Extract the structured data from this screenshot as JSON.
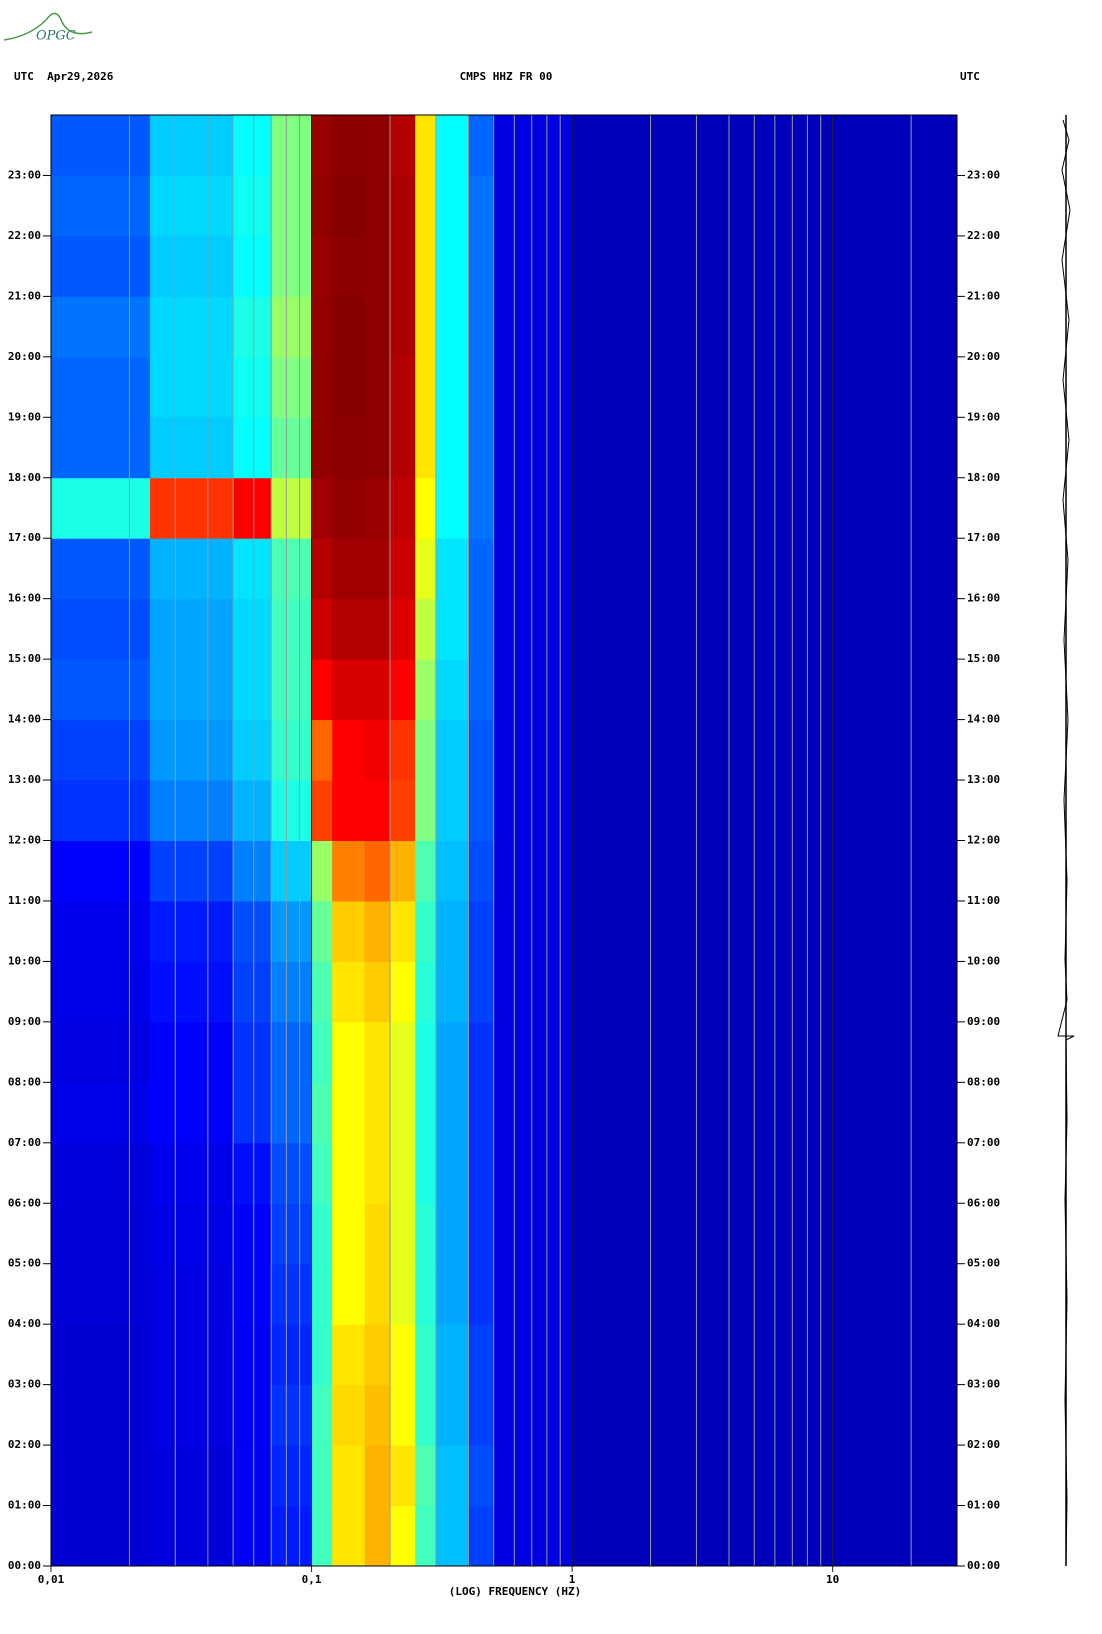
{
  "logo": "OPGC",
  "chart_data": {
    "type": "spectrogram",
    "title": "CMPS HHZ FR 00",
    "left_label": "UTC  Apr29,2026",
    "right_label": "UTC",
    "xlabel": "(LOG) FREQUENCY (HZ)",
    "xscale": "log",
    "xlim": [
      0.01,
      30
    ],
    "xticks": [
      {
        "value": 0.01,
        "label": "0,01"
      },
      {
        "value": 0.1,
        "label": "0,1"
      },
      1,
      10
    ],
    "xgrid": [
      0.02,
      0.03,
      0.04,
      0.05,
      0.06,
      0.07,
      0.08,
      0.09,
      0.2,
      0.3,
      0.4,
      0.5,
      0.6,
      0.7,
      0.8,
      0.9,
      2,
      3,
      4,
      5,
      6,
      7,
      8,
      9,
      20
    ],
    "ylim": [
      0,
      24
    ],
    "yticks": [
      {
        "value": 0,
        "label": "00:00"
      },
      {
        "value": 1,
        "label": "01:00"
      },
      {
        "value": 2,
        "label": "02:00"
      },
      {
        "value": 3,
        "label": "03:00"
      },
      {
        "value": 4,
        "label": "04:00"
      },
      {
        "value": 5,
        "label": "05:00"
      },
      {
        "value": 6,
        "label": "06:00"
      },
      {
        "value": 7,
        "label": "07:00"
      },
      {
        "value": 8,
        "label": "08:00"
      },
      {
        "value": 9,
        "label": "09:00"
      },
      {
        "value": 10,
        "label": "10:00"
      },
      {
        "value": 11,
        "label": "11:00"
      },
      {
        "value": 12,
        "label": "12:00"
      },
      {
        "value": 13,
        "label": "13:00"
      },
      {
        "value": 14,
        "label": "14:00"
      },
      {
        "value": 15,
        "label": "15:00"
      },
      {
        "value": 16,
        "label": "16:00"
      },
      {
        "value": 17,
        "label": "17:00"
      },
      {
        "value": 18,
        "label": "18:00"
      },
      {
        "value": 19,
        "label": "19:00"
      },
      {
        "value": 20,
        "label": "20:00"
      },
      {
        "value": 21,
        "label": "21:00"
      },
      {
        "value": 22,
        "label": "22:00"
      },
      {
        "value": 23,
        "label": "23:00"
      }
    ],
    "x_bins": [
      0.01,
      0.024,
      0.05,
      0.07,
      0.1,
      0.12,
      0.16,
      0.2,
      0.25,
      0.3,
      0.4,
      0.5,
      1,
      30
    ],
    "y_bins": [
      0,
      1,
      2,
      3,
      4,
      5,
      6,
      7,
      8,
      9,
      10,
      11,
      12,
      13,
      14,
      15,
      16,
      17,
      18,
      19,
      20,
      21,
      22,
      23,
      24
    ],
    "zlim": [
      0,
      1
    ],
    "colorscale": [
      "#00008f",
      "#0000ff",
      "#00ffff",
      "#ffff00",
      "#ff0000",
      "#800000"
    ],
    "values": [
      [
        0.12,
        0.14,
        0.18,
        0.22,
        0.45,
        0.62,
        0.66,
        0.6,
        0.45,
        0.35,
        0.25,
        0.15,
        0.08
      ],
      [
        0.12,
        0.14,
        0.18,
        0.23,
        0.45,
        0.62,
        0.66,
        0.62,
        0.46,
        0.35,
        0.26,
        0.15,
        0.08
      ],
      [
        0.12,
        0.15,
        0.19,
        0.24,
        0.45,
        0.63,
        0.65,
        0.6,
        0.44,
        0.34,
        0.25,
        0.15,
        0.08
      ],
      [
        0.12,
        0.15,
        0.19,
        0.23,
        0.44,
        0.62,
        0.64,
        0.6,
        0.44,
        0.34,
        0.25,
        0.15,
        0.08
      ],
      [
        0.13,
        0.15,
        0.2,
        0.24,
        0.44,
        0.6,
        0.63,
        0.58,
        0.43,
        0.33,
        0.24,
        0.15,
        0.08
      ],
      [
        0.13,
        0.16,
        0.2,
        0.25,
        0.44,
        0.6,
        0.63,
        0.58,
        0.43,
        0.33,
        0.24,
        0.15,
        0.08
      ],
      [
        0.14,
        0.17,
        0.21,
        0.26,
        0.45,
        0.6,
        0.62,
        0.58,
        0.42,
        0.33,
        0.24,
        0.15,
        0.08
      ],
      [
        0.16,
        0.2,
        0.24,
        0.28,
        0.46,
        0.6,
        0.62,
        0.58,
        0.42,
        0.33,
        0.24,
        0.15,
        0.08
      ],
      [
        0.15,
        0.2,
        0.24,
        0.28,
        0.45,
        0.6,
        0.62,
        0.58,
        0.42,
        0.33,
        0.24,
        0.15,
        0.08
      ],
      [
        0.16,
        0.21,
        0.25,
        0.3,
        0.46,
        0.62,
        0.64,
        0.6,
        0.43,
        0.34,
        0.25,
        0.15,
        0.08
      ],
      [
        0.17,
        0.22,
        0.26,
        0.32,
        0.48,
        0.64,
        0.66,
        0.62,
        0.44,
        0.34,
        0.25,
        0.15,
        0.08
      ],
      [
        0.2,
        0.25,
        0.3,
        0.36,
        0.52,
        0.7,
        0.72,
        0.66,
        0.46,
        0.35,
        0.26,
        0.15,
        0.08
      ],
      [
        0.24,
        0.3,
        0.34,
        0.42,
        0.75,
        0.8,
        0.8,
        0.75,
        0.5,
        0.36,
        0.27,
        0.15,
        0.08
      ],
      [
        0.25,
        0.32,
        0.36,
        0.44,
        0.72,
        0.8,
        0.82,
        0.76,
        0.5,
        0.36,
        0.27,
        0.15,
        0.08
      ],
      [
        0.27,
        0.33,
        0.37,
        0.45,
        0.8,
        0.86,
        0.86,
        0.8,
        0.52,
        0.37,
        0.28,
        0.15,
        0.08
      ],
      [
        0.26,
        0.33,
        0.37,
        0.45,
        0.88,
        0.92,
        0.92,
        0.85,
        0.55,
        0.38,
        0.28,
        0.15,
        0.08
      ],
      [
        0.27,
        0.34,
        0.38,
        0.46,
        0.92,
        0.95,
        0.95,
        0.88,
        0.58,
        0.38,
        0.28,
        0.15,
        0.08
      ],
      [
        0.42,
        0.76,
        0.8,
        0.55,
        0.95,
        0.97,
        0.96,
        0.9,
        0.6,
        0.4,
        0.29,
        0.15,
        0.08
      ],
      [
        0.28,
        0.36,
        0.4,
        0.48,
        0.97,
        0.98,
        0.98,
        0.92,
        0.62,
        0.4,
        0.29,
        0.15,
        0.08
      ],
      [
        0.28,
        0.37,
        0.41,
        0.5,
        0.97,
        0.99,
        0.98,
        0.92,
        0.62,
        0.4,
        0.29,
        0.15,
        0.08
      ],
      [
        0.29,
        0.37,
        0.42,
        0.52,
        0.97,
        0.99,
        0.98,
        0.93,
        0.62,
        0.4,
        0.29,
        0.15,
        0.08
      ],
      [
        0.27,
        0.36,
        0.4,
        0.5,
        0.96,
        0.98,
        0.98,
        0.93,
        0.62,
        0.4,
        0.29,
        0.15,
        0.08
      ],
      [
        0.28,
        0.37,
        0.41,
        0.5,
        0.97,
        0.99,
        0.98,
        0.93,
        0.62,
        0.4,
        0.29,
        0.15,
        0.08
      ],
      [
        0.27,
        0.36,
        0.4,
        0.5,
        0.96,
        0.98,
        0.98,
        0.92,
        0.62,
        0.4,
        0.28,
        0.15,
        0.08
      ]
    ]
  }
}
